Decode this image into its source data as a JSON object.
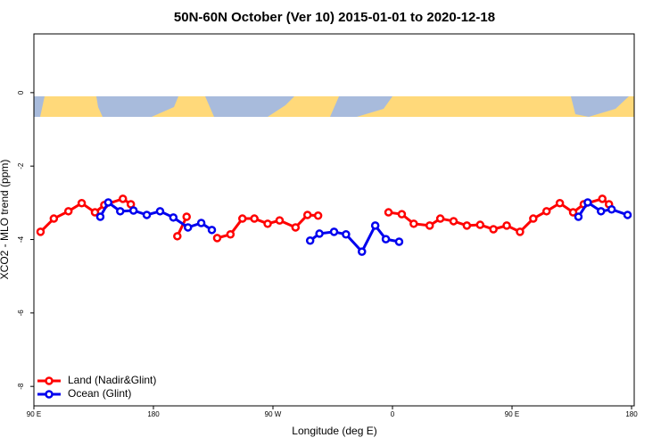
{
  "chart_data": {
    "type": "line",
    "title": "50N-60N October (Ver 10)   2015-01-01 to 2020-12-18",
    "x_label": "Longitude (deg E)",
    "y_label": "XCO2 - MLO trend (ppm)",
    "xlim": [
      90,
      542
    ],
    "ylim": [
      -8.53,
      1.6
    ],
    "xticks": [
      {
        "value": 90,
        "label": "90 E"
      },
      180,
      {
        "value": 270,
        "label": "90 W"
      },
      {
        "value": 360,
        "label": "0"
      },
      {
        "value": 450,
        "label": "90 E"
      },
      {
        "value": 540,
        "label": "180"
      }
    ],
    "yticks": [
      0,
      -2,
      -4,
      -6,
      -8
    ],
    "legend": "bottom-left",
    "series": [
      {
        "name": "Land (Nadir&Glint)",
        "color": "#ff0000",
        "x": [
          95,
          105,
          116,
          126,
          136,
          143,
          157,
          163,
          180,
          198,
          205,
          215,
          228,
          238,
          247,
          256,
          266,
          275,
          287,
          296,
          304,
          340,
          357,
          367,
          376,
          388,
          396,
          406,
          416,
          426,
          436,
          446,
          456,
          466,
          476,
          486,
          496,
          504,
          518,
          523
        ],
        "values": [
          -3.79,
          -3.43,
          -3.23,
          -3.01,
          -3.26,
          -3.06,
          -2.89,
          -3.04,
          null,
          -3.91,
          -3.38,
          null,
          -3.96,
          -3.86,
          -3.43,
          -3.43,
          -3.57,
          -3.48,
          -3.67,
          -3.33,
          -3.35,
          null,
          -3.26,
          -3.31,
          -3.57,
          -3.62,
          -3.43,
          -3.5,
          -3.62,
          -3.6,
          -3.72,
          -3.62,
          -3.79,
          -3.43,
          -3.23,
          -3.01,
          -3.26,
          -3.04,
          -2.89,
          -3.04
        ]
      },
      {
        "name": "Ocean (Glint)",
        "color": "#0000ee",
        "x": [
          140,
          146,
          155,
          165,
          175,
          185,
          195,
          206,
          216,
          224,
          280,
          298,
          305,
          316,
          325,
          337,
          347,
          355,
          365,
          400,
          500,
          507,
          517,
          525,
          537
        ],
        "values": [
          -3.38,
          -2.99,
          -3.23,
          -3.21,
          -3.33,
          -3.23,
          -3.4,
          -3.67,
          -3.55,
          -3.74,
          null,
          -4.03,
          -3.84,
          -3.79,
          -3.86,
          -4.33,
          -3.62,
          -3.99,
          -4.06,
          null,
          -3.38,
          -2.99,
          -3.23,
          -3.18,
          -3.33
        ]
      }
    ]
  }
}
